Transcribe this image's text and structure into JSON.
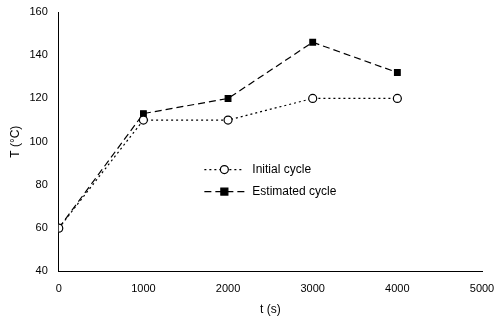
{
  "chart_data": {
    "type": "line",
    "x_label": "t (s)",
    "y_label": "T (°C)",
    "xlim": [
      0,
      5000
    ],
    "xticks": [
      0,
      1000,
      2000,
      3000,
      4000,
      5000
    ],
    "ylim": [
      40,
      160
    ],
    "yticks": [
      40,
      60,
      80,
      100,
      120,
      140,
      160
    ],
    "grid": false,
    "legend": "center",
    "series": [
      {
        "name": "Initial cycle",
        "color": "#000000",
        "marker": "circle_open",
        "line_style": "dotted",
        "x": [
          0,
          1000,
          2000,
          3000,
          4000
        ],
        "values": [
          60,
          110,
          110,
          120,
          120
        ]
      },
      {
        "name": "Estimated cycle",
        "color": "#000000",
        "marker": "square",
        "line_style": "dashed",
        "x": [
          0,
          1000,
          2000,
          3000,
          4000
        ],
        "values": [
          60,
          113,
          120,
          146,
          132
        ]
      }
    ]
  }
}
